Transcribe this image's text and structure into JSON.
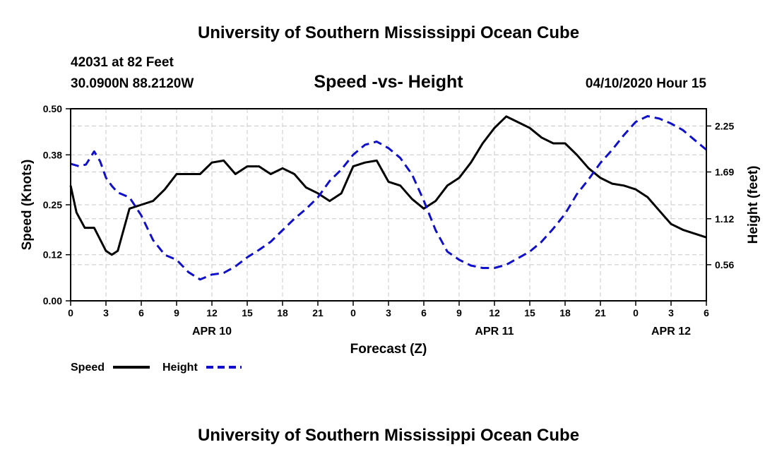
{
  "header": {
    "title": "University of Southern Mississippi Ocean Cube",
    "station": "42031 at 82 Feet",
    "coords": "30.0900N 88.2120W",
    "chart_title": "Speed -vs- Height",
    "run": "04/10/2020 Hour 15"
  },
  "footer": {
    "title": "University of Southern Mississippi Ocean Cube"
  },
  "chart_data": {
    "type": "line",
    "title": "Speed -vs- Height",
    "xlabel": "Forecast (Z)",
    "ylabel_left": "Speed (Knots)",
    "ylabel_right": "Height (feet)",
    "xlim": [
      0,
      54
    ],
    "ylim_left": [
      0,
      0.5
    ],
    "ylim_right": [
      0.12,
      2.46
    ],
    "grid": true,
    "x_tick_values": [
      0,
      3,
      6,
      9,
      12,
      15,
      18,
      21,
      24,
      27,
      30,
      33,
      36,
      39,
      42,
      45,
      48,
      51,
      54
    ],
    "x_tick_labels": [
      "0",
      "3",
      "6",
      "9",
      "12",
      "15",
      "18",
      "21",
      "0",
      "3",
      "6",
      "9",
      "12",
      "15",
      "18",
      "21",
      "0",
      "3",
      "6"
    ],
    "y_left_ticks": [
      0,
      0.12,
      0.25,
      0.38,
      0.5
    ],
    "y_left_tick_labels": [
      "0.00",
      "0.12",
      "0.25",
      "0.38",
      "0.50"
    ],
    "y_right_ticks": [
      0.56,
      1.12,
      1.69,
      2.25
    ],
    "y_right_tick_labels": [
      "0.56",
      "1.12",
      "1.69",
      "2.25"
    ],
    "date_labels": [
      {
        "x": 12,
        "label": "APR 10"
      },
      {
        "x": 36,
        "label": "APR 11"
      },
      {
        "x": 51,
        "label": "APR 12"
      }
    ],
    "legend": [
      "Speed",
      "Height"
    ],
    "series": [
      {
        "name": "Speed",
        "axis": "left",
        "color": "#000000",
        "dash": "solid",
        "x": [
          0,
          0.5,
          1.2,
          2,
          2.5,
          3,
          3.5,
          4,
          5,
          6,
          7,
          8,
          9,
          10,
          11,
          12,
          13,
          14,
          15,
          16,
          17,
          18,
          19,
          20,
          21,
          22,
          23,
          24,
          25,
          26,
          27,
          28,
          29,
          30,
          31,
          32,
          33,
          34,
          35,
          36,
          37,
          38,
          39,
          40,
          41,
          42,
          43,
          44,
          45,
          46,
          47,
          48,
          49,
          50,
          51,
          52,
          53,
          54
        ],
        "values": [
          0.3,
          0.23,
          0.19,
          0.19,
          0.16,
          0.13,
          0.12,
          0.13,
          0.24,
          0.25,
          0.26,
          0.29,
          0.33,
          0.33,
          0.33,
          0.36,
          0.365,
          0.33,
          0.35,
          0.35,
          0.33,
          0.345,
          0.33,
          0.295,
          0.28,
          0.26,
          0.28,
          0.35,
          0.36,
          0.365,
          0.31,
          0.3,
          0.265,
          0.24,
          0.26,
          0.3,
          0.32,
          0.36,
          0.41,
          0.45,
          0.48,
          0.465,
          0.45,
          0.425,
          0.41,
          0.41,
          0.38,
          0.345,
          0.32,
          0.305,
          0.3,
          0.29,
          0.27,
          0.235,
          0.2,
          0.185,
          0.175,
          0.165
        ]
      },
      {
        "name": "Height",
        "axis": "right",
        "color": "#1010cc",
        "dash": "dashed",
        "x": [
          0,
          0.7,
          1.3,
          2,
          2.5,
          3,
          3.5,
          4,
          5,
          6,
          7,
          8,
          9,
          10,
          11,
          12,
          13,
          14,
          15,
          16,
          17,
          18,
          19,
          20,
          21,
          22,
          23,
          24,
          25,
          26,
          27,
          28,
          29,
          30,
          31,
          32,
          33,
          34,
          35,
          36,
          37,
          38,
          39,
          40,
          41,
          42,
          43,
          44,
          45,
          46,
          47,
          48,
          49,
          50,
          51,
          52,
          53,
          54
        ],
        "values": [
          1.79,
          1.76,
          1.78,
          1.94,
          1.82,
          1.62,
          1.52,
          1.44,
          1.38,
          1.16,
          0.86,
          0.68,
          0.62,
          0.47,
          0.38,
          0.44,
          0.46,
          0.54,
          0.65,
          0.74,
          0.84,
          0.98,
          1.12,
          1.24,
          1.38,
          1.58,
          1.72,
          1.9,
          2.02,
          2.06,
          1.98,
          1.86,
          1.66,
          1.34,
          0.98,
          0.72,
          0.62,
          0.55,
          0.52,
          0.52,
          0.56,
          0.64,
          0.72,
          0.84,
          1.0,
          1.18,
          1.42,
          1.6,
          1.8,
          1.96,
          2.14,
          2.3,
          2.37,
          2.34,
          2.28,
          2.2,
          2.08,
          1.96
        ]
      }
    ]
  }
}
